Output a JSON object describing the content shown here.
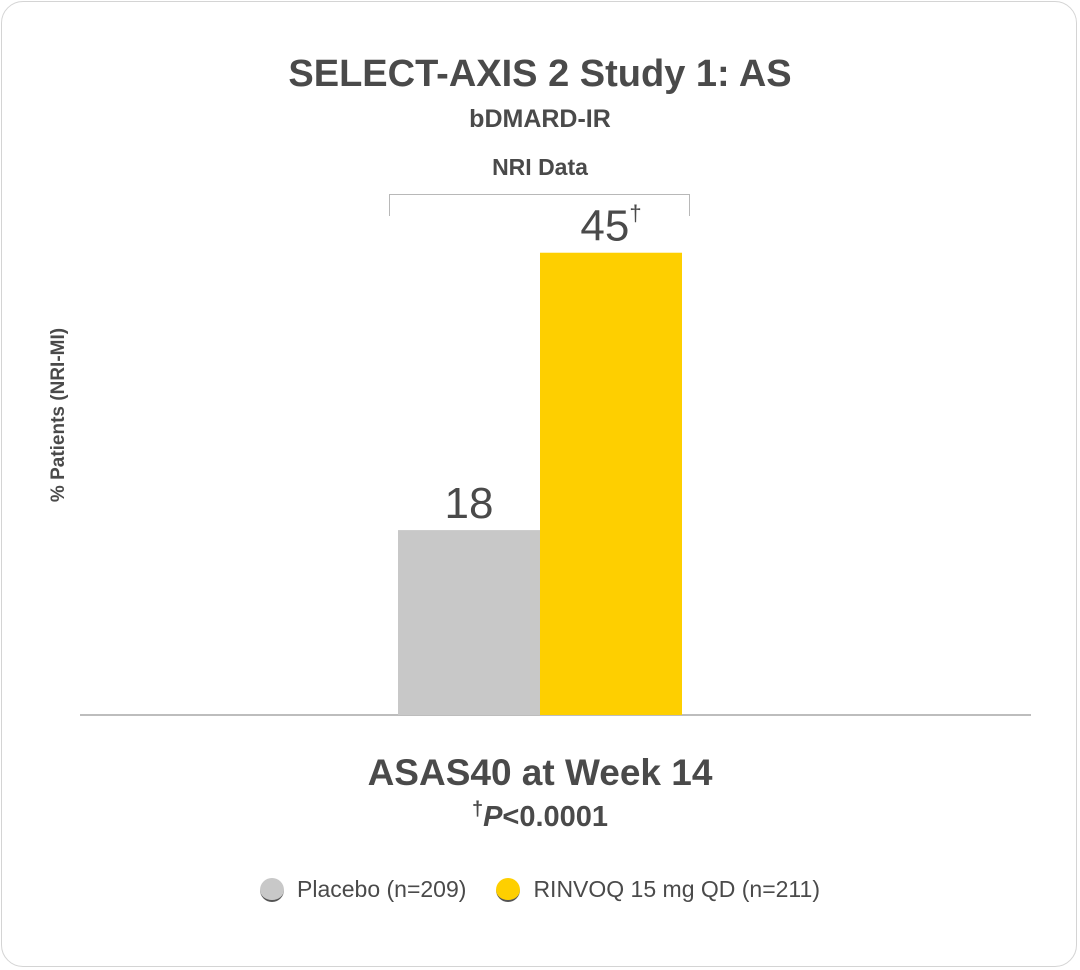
{
  "header": {
    "title": "SELECT-AXIS 2 Study 1: AS",
    "subtitle": "bDMARD-IR",
    "data_note": "NRI Data"
  },
  "footnote": {
    "dagger": "†",
    "p_italic": "P",
    "p_rest": "<0.0001"
  },
  "legend": {
    "items": [
      {
        "label": "Placebo (n=209)",
        "color": "#c8c8c8"
      },
      {
        "label": "RINVOQ 15 mg QD (n=211)",
        "color": "#fecf00"
      }
    ]
  },
  "chart_data": {
    "type": "bar",
    "title": "SELECT-AXIS 2 Study 1: AS",
    "subtitle": "bDMARD-IR",
    "xlabel": "ASAS40 at Week 14",
    "ylabel": "% Patients (NRI-MI)",
    "categories": [
      "ASAS40 at Week 14"
    ],
    "series": [
      {
        "name": "Placebo (n=209)",
        "values": [
          18
        ],
        "label": "18",
        "color": "#c8c8c8"
      },
      {
        "name": "RINVOQ 15 mg QD (n=211)",
        "values": [
          45
        ],
        "label": "45",
        "superscript": "†",
        "color": "#fecf00"
      }
    ],
    "ylim": [
      0,
      55
    ],
    "grid": false,
    "legend": "bottom"
  }
}
